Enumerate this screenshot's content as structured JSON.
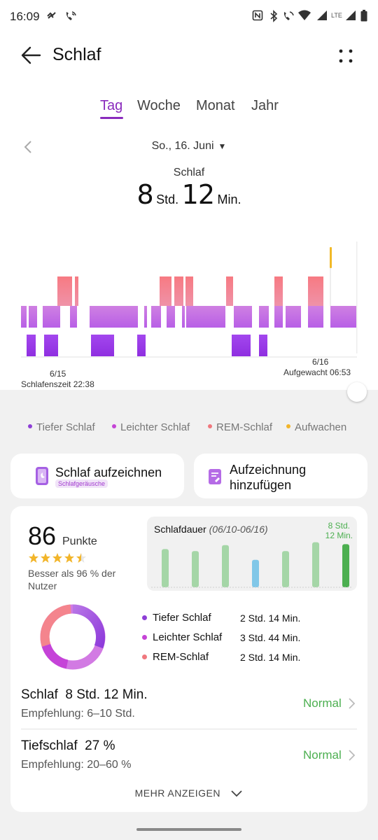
{
  "status_bar": {
    "time": "16:09",
    "left_icons": [
      "recent-call-icon",
      "wifi-calling-icon"
    ],
    "right_icons": [
      "nfc-icon",
      "bluetooth-icon",
      "wifi-call-icon",
      "wifi-icon",
      "signal-icon",
      "lte-signal-icon",
      "battery-icon"
    ],
    "lte_label": "LTE"
  },
  "header": {
    "title": "Schlaf"
  },
  "tabs": [
    {
      "label": "Tag",
      "active": true
    },
    {
      "label": "Woche",
      "active": false
    },
    {
      "label": "Monat",
      "active": false
    },
    {
      "label": "Jahr",
      "active": false
    }
  ],
  "date_nav": {
    "date": "So., 16. Juni"
  },
  "summary": {
    "label": "Schlaf",
    "hours": "8",
    "hours_unit": "Std.",
    "minutes": "12",
    "minutes_unit": "Min."
  },
  "chart_data": {
    "type": "timeline",
    "start": {
      "date": "6/15",
      "label": "Schlafenszeit 22:38"
    },
    "end": {
      "date": "6/16",
      "label": "Aufgewacht 06:53"
    },
    "stages": [
      "Tiefer Schlaf",
      "Leichter Schlaf",
      "REM-Schlaf",
      "Aufwachen"
    ],
    "colors": {
      "deep": "#9b35e6",
      "light": "#c46ce0",
      "rem": "#f77e84",
      "awake": "#f1b928"
    }
  },
  "legend": [
    {
      "label": "Tiefer Schlaf",
      "color": "#8e3fd6"
    },
    {
      "label": "Leichter Schlaf",
      "color": "#c544d6"
    },
    {
      "label": "REM-Schlaf",
      "color": "#f0787e"
    },
    {
      "label": "Aufwachen",
      "color": "#f2b52a"
    }
  ],
  "actions": {
    "record": {
      "title": "Schlaf aufzeichnen",
      "badge": "Schlafgeräusche"
    },
    "add": {
      "title_line1": "Aufzeichnung",
      "title_line2": "hinzufügen"
    }
  },
  "score": {
    "value": "86",
    "unit": "Punkte",
    "stars": 4.5,
    "comparison": "Besser als 96 % der Nutzer"
  },
  "weekly": {
    "title": "Schlafdauer",
    "range": "(06/10-06/16)",
    "value_line1": "8 Std.",
    "value_line2": "12 Min.",
    "bars": [
      {
        "level": 0.78,
        "color": "#a5d6a7"
      },
      {
        "level": 0.74,
        "color": "#a5d6a7"
      },
      {
        "level": 0.86,
        "color": "#a5d6a7"
      },
      {
        "level": 0.56,
        "color": "#81c7e8"
      },
      {
        "level": 0.74,
        "color": "#a5d6a7"
      },
      {
        "level": 0.92,
        "color": "#a5d6a7"
      },
      {
        "level": 0.88,
        "color": "#4caf50"
      }
    ]
  },
  "breakdown": [
    {
      "label": "Tiefer Schlaf",
      "value": "2 Std. 14 Min.",
      "color": "#8e3fd6"
    },
    {
      "label": "Leichter Schlaf",
      "value": "3 Std. 44 Min.",
      "color": "#c544d6"
    },
    {
      "label": "REM-Schlaf",
      "value": "2 Std. 14 Min.",
      "color": "#f0787e"
    }
  ],
  "rows": [
    {
      "title": "Schlaf  8 Std. 12 Min.",
      "sub": "Empfehlung: 6–10 Std.",
      "status": "Normal"
    },
    {
      "title": "Tiefschlaf  27 %",
      "sub": "Empfehlung: 20–60 %",
      "status": "Normal"
    }
  ],
  "more_label": "MEHR ANZEIGEN"
}
